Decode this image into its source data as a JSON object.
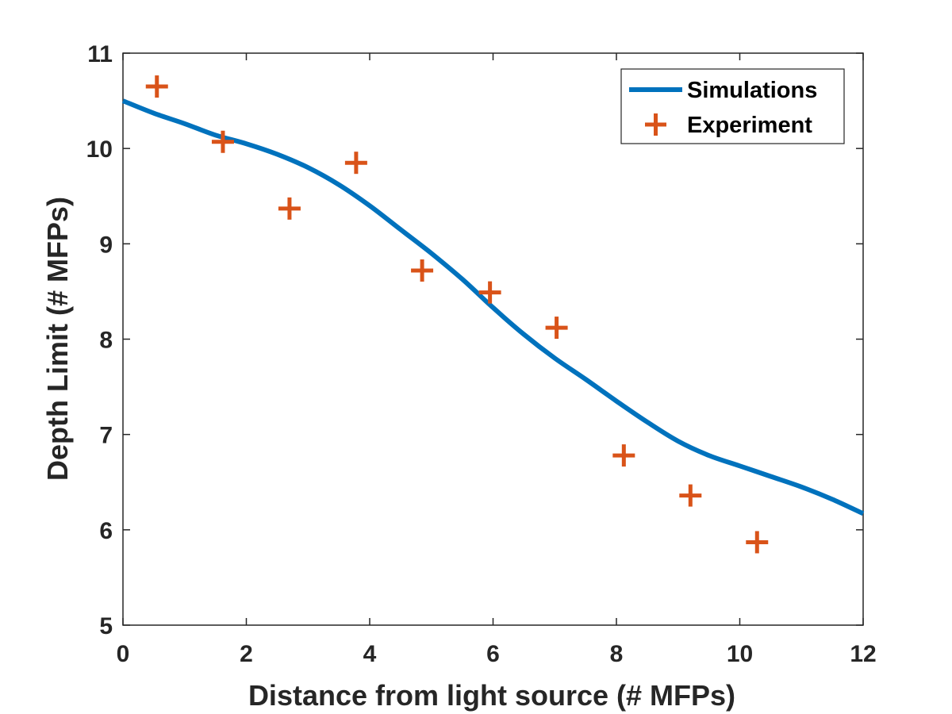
{
  "chart_data": {
    "type": "line",
    "title": "",
    "xlabel": "Distance from light source (# MFPs)",
    "ylabel": "Depth Limit (# MFPs)",
    "xlim": [
      0,
      12
    ],
    "ylim": [
      5,
      11
    ],
    "xticks": [
      0,
      2,
      4,
      6,
      8,
      10,
      12
    ],
    "yticks": [
      5,
      6,
      7,
      8,
      9,
      10,
      11
    ],
    "grid": false,
    "legend_position": "top-right",
    "series": [
      {
        "name": "Simulations",
        "style": "line",
        "color": "#0072BD",
        "x": [
          0,
          0.5,
          1,
          1.5,
          2,
          2.5,
          3,
          3.5,
          4,
          4.5,
          5,
          5.5,
          6,
          6.5,
          7,
          7.5,
          8,
          8.5,
          9,
          9.5,
          10,
          10.5,
          11,
          11.5,
          12
        ],
        "y": [
          10.5,
          10.37,
          10.26,
          10.14,
          10.05,
          9.94,
          9.8,
          9.62,
          9.4,
          9.15,
          8.9,
          8.63,
          8.33,
          8.05,
          7.8,
          7.58,
          7.35,
          7.13,
          6.93,
          6.78,
          6.67,
          6.56,
          6.45,
          6.32,
          6.17
        ]
      },
      {
        "name": "Experiment",
        "style": "marker",
        "color": "#D95319",
        "x": [
          0.55,
          1.62,
          2.7,
          3.78,
          4.85,
          5.95,
          7.03,
          8.12,
          9.2,
          10.28
        ],
        "y": [
          10.65,
          10.07,
          9.37,
          9.85,
          8.72,
          8.49,
          8.12,
          6.78,
          6.36,
          5.87
        ]
      }
    ]
  }
}
